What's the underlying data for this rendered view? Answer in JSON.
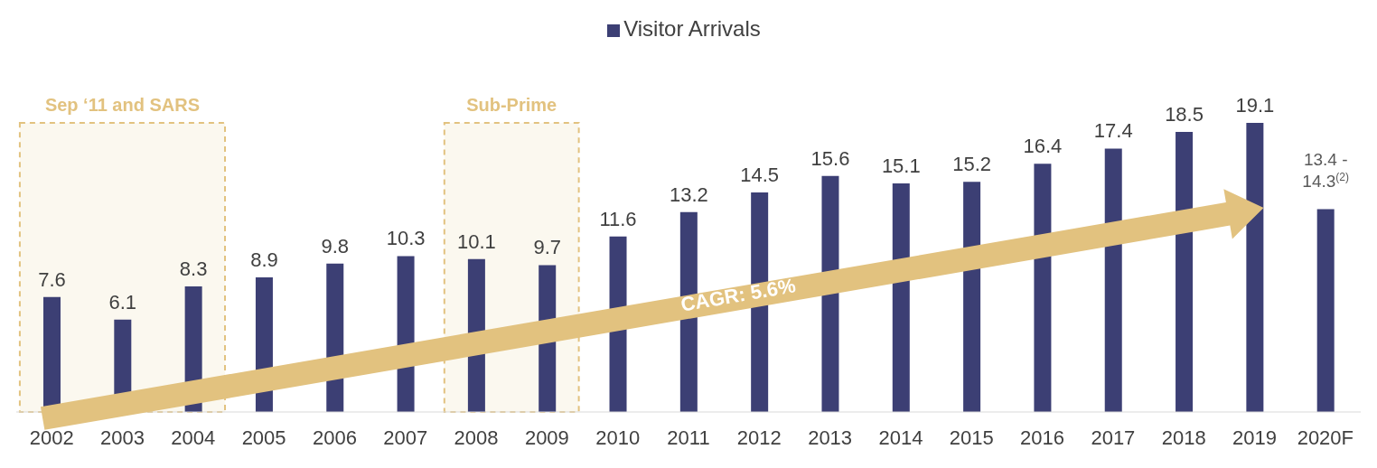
{
  "chart_data": {
    "type": "bar",
    "categories": [
      "2002",
      "2003",
      "2004",
      "2005",
      "2006",
      "2007",
      "2008",
      "2009",
      "2010",
      "2011",
      "2012",
      "2013",
      "2014",
      "2015",
      "2016",
      "2017",
      "2018",
      "2019",
      "2020F"
    ],
    "series": [
      {
        "name": "Visitor Arrivals",
        "color": "#3c3f74",
        "values": [
          7.6,
          6.1,
          8.3,
          8.9,
          9.8,
          10.3,
          10.1,
          9.7,
          11.6,
          13.2,
          14.5,
          15.6,
          15.1,
          15.2,
          16.4,
          17.4,
          18.5,
          19.1,
          13.4
        ],
        "value_labels": [
          "7.6",
          "6.1",
          "8.3",
          "8.9",
          "9.8",
          "10.3",
          "10.1",
          "9.7",
          "11.6",
          "13.2",
          "14.5",
          "15.6",
          "15.1",
          "15.2",
          "16.4",
          "17.4",
          "18.5",
          "19.1",
          "13.4 - 14.3$^{(2)}$"
        ]
      }
    ],
    "bands": [
      {
        "axis": "x",
        "from": "2002",
        "to": "2004",
        "label": "Sep ‘11 and SARS",
        "color": "#e2c27f"
      },
      {
        "axis": "x",
        "from": "2008",
        "to": "2009",
        "label": "Sub-Prime",
        "color": "#e2c27f"
      }
    ],
    "annotations": [
      "CAGR: 5.6%"
    ],
    "legend": "top"
  }
}
